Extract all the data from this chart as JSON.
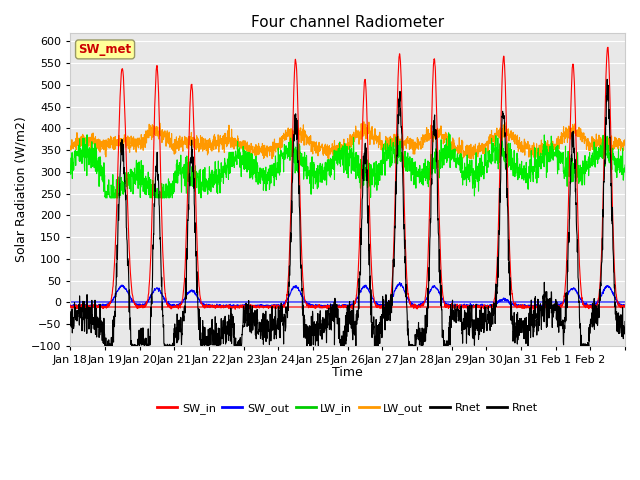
{
  "title": "Four channel Radiometer",
  "xlabel": "Time",
  "ylabel": "Solar Radiation (W/m2)",
  "ylim": [
    -100,
    620
  ],
  "yticks": [
    -100,
    -50,
    0,
    50,
    100,
    150,
    200,
    250,
    300,
    350,
    400,
    450,
    500,
    550,
    600
  ],
  "x_labels": [
    "Jan 18",
    "Jan 19",
    "Jan 20",
    "Jan 21",
    "Jan 22",
    "Jan 23",
    "Jan 24",
    "Jan 25",
    "Jan 26",
    "Jan 27",
    "Jan 28",
    "Jan 29",
    "Jan 30",
    "Jan 31",
    "Feb 1",
    "Feb 2"
  ],
  "background_color": "#e8e8e8",
  "annotation_text": "SW_met",
  "annotation_color": "#cc0000",
  "annotation_bg": "#ffff99",
  "legend_entries": [
    "SW_in",
    "SW_out",
    "LW_in",
    "LW_out",
    "Rnet",
    "Rnet"
  ],
  "legend_colors": [
    "#ff0000",
    "#0000ff",
    "#00cc00",
    "#ff9900",
    "#000000",
    "#000000"
  ],
  "n_days": 16,
  "sw_in_peaks": [
    0,
    548,
    553,
    512,
    0,
    0,
    567,
    0,
    522,
    580,
    570,
    0,
    575,
    0,
    557,
    595
  ],
  "sw_peak_widths": [
    0,
    0.12,
    0.1,
    0.1,
    0,
    0,
    0.1,
    0,
    0.1,
    0.1,
    0.1,
    0,
    0.1,
    0,
    0.1,
    0.1
  ],
  "sw_peak_offsets": [
    0.5,
    0.5,
    0.5,
    0.5,
    0.5,
    0.5,
    0.5,
    0.5,
    0.5,
    0.5,
    0.5,
    0.5,
    0.5,
    0.5,
    0.5,
    0.5
  ],
  "sw_in_baseline": -10,
  "sw_out_baseline": -10,
  "lw_in_base": 320,
  "lw_out_base": 360,
  "seed": 7
}
